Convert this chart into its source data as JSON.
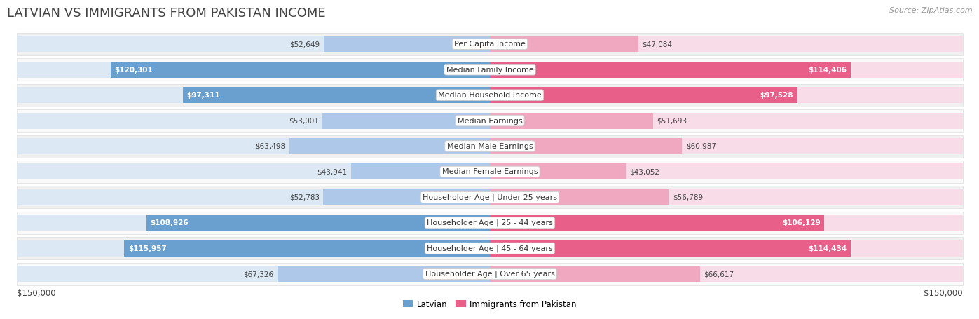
{
  "title": "LATVIAN VS IMMIGRANTS FROM PAKISTAN INCOME",
  "source": "Source: ZipAtlas.com",
  "categories": [
    "Per Capita Income",
    "Median Family Income",
    "Median Household Income",
    "Median Earnings",
    "Median Male Earnings",
    "Median Female Earnings",
    "Householder Age | Under 25 years",
    "Householder Age | 25 - 44 years",
    "Householder Age | 45 - 64 years",
    "Householder Age | Over 65 years"
  ],
  "latvian_values": [
    52649,
    120301,
    97311,
    53001,
    63498,
    43941,
    52783,
    108926,
    115957,
    67326
  ],
  "pakistan_values": [
    47084,
    114406,
    97528,
    51693,
    60987,
    43052,
    56789,
    106129,
    114434,
    66617
  ],
  "latvian_color_light": "#adc8e8",
  "latvian_color_strong": "#6aa0d0",
  "pakistan_color_light": "#f0a8c0",
  "pakistan_color_strong": "#e8608a",
  "bar_bg_left": "#dce8f4",
  "bar_bg_right": "#f8dce8",
  "row_bg_even": "#f0f0f0",
  "row_bg_odd": "#fafafa",
  "row_border": "#dddddd",
  "max_value": 150000,
  "x_label_left": "$150,000",
  "x_label_right": "$150,000",
  "legend_latvian": "Latvian",
  "legend_pakistan": "Immigrants from Pakistan",
  "title_color": "#444444",
  "title_fontsize": 13,
  "source_fontsize": 8,
  "label_fontsize": 8,
  "value_fontsize": 7.5,
  "axis_fontsize": 8.5,
  "figsize": [
    14.06,
    4.67
  ],
  "dpi": 100,
  "large_threshold": 75000
}
